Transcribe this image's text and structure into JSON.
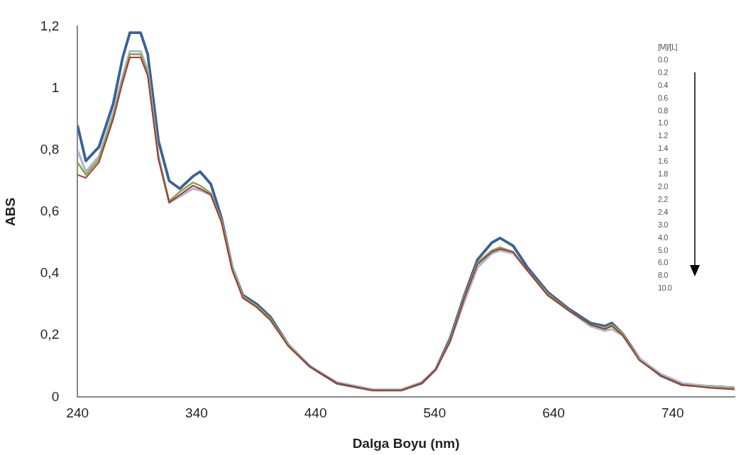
{
  "chart_data": {
    "type": "line",
    "xlabel": "Dalga Boyu (nm)",
    "ylabel": "ABS",
    "legend_title": "[M]/[L]",
    "annotations": [
      "0.0",
      "0.2",
      "0.4",
      "0.6",
      "0.8",
      "1.0",
      "1.2",
      "1.4",
      "1.6",
      "1.8",
      "2.0",
      "2.2",
      "2.4",
      "3.0",
      "4.0",
      "5.0",
      "6.0",
      "8.0",
      "10.0"
    ],
    "x": [
      240,
      247,
      258,
      270,
      278,
      284,
      293,
      299,
      308,
      317,
      326,
      337,
      343,
      352,
      361,
      370,
      379,
      391,
      402,
      417,
      435,
      458,
      488,
      512,
      529,
      541,
      553,
      565,
      576,
      588,
      595,
      606,
      618,
      635,
      653,
      671,
      683,
      689,
      698,
      712,
      730,
      748,
      771,
      792
    ],
    "xlim": [
      240,
      792
    ],
    "xticks": [
      240,
      340,
      440,
      540,
      640,
      740
    ],
    "ylim": [
      0,
      1.2
    ],
    "yticks": [
      0,
      {
        "value": 0.2,
        "label": "0,2"
      },
      {
        "value": 0.4,
        "label": "0,4"
      },
      {
        "value": 0.6,
        "label": "0,6"
      },
      {
        "value": 0.8,
        "label": "0,8"
      },
      1,
      {
        "value": 1.2,
        "label": "1,2"
      }
    ],
    "grid": false,
    "legend": false,
    "marker": "none",
    "line_style": "solid",
    "series": [
      {
        "color": "#a33a36",
        "values": [
          0.72,
          0.71,
          0.76,
          0.9,
          1.02,
          1.1,
          1.1,
          1.04,
          0.77,
          0.63,
          0.655,
          0.685,
          0.675,
          0.655,
          0.565,
          0.41,
          0.32,
          0.29,
          0.25,
          0.165,
          0.1,
          0.045,
          0.022,
          0.022,
          0.045,
          0.09,
          0.18,
          0.32,
          0.43,
          0.47,
          0.48,
          0.47,
          0.41,
          0.33,
          0.28,
          0.235,
          0.22,
          0.23,
          0.2,
          0.12,
          0.07,
          0.04,
          0.03,
          0.025
        ]
      },
      {
        "color": "#8aa84a",
        "values": [
          0.76,
          0.72,
          0.77,
          0.91,
          1.03,
          1.11,
          1.11,
          1.05,
          0.775,
          0.635,
          0.665,
          0.695,
          0.685,
          0.66,
          0.57,
          0.415,
          0.325,
          0.295,
          0.255,
          0.168,
          0.1,
          0.045,
          0.022,
          0.022,
          0.045,
          0.09,
          0.185,
          0.325,
          0.435,
          0.475,
          0.485,
          0.47,
          0.41,
          0.335,
          0.28,
          0.235,
          0.225,
          0.235,
          0.205,
          0.12,
          0.07,
          0.04,
          0.032,
          0.028
        ]
      },
      {
        "color": "#a8b8d6",
        "values": [
          0.8,
          0.73,
          0.78,
          0.92,
          1.04,
          1.12,
          1.12,
          1.06,
          0.78,
          0.63,
          0.65,
          0.675,
          0.67,
          0.655,
          0.57,
          0.42,
          0.325,
          0.29,
          0.25,
          0.17,
          0.1,
          0.048,
          0.025,
          0.025,
          0.048,
          0.09,
          0.18,
          0.31,
          0.42,
          0.465,
          0.475,
          0.465,
          0.41,
          0.33,
          0.28,
          0.23,
          0.215,
          0.22,
          0.2,
          0.125,
          0.075,
          0.045,
          0.035,
          0.03
        ]
      },
      {
        "color": "#3a6198",
        "values": [
          0.88,
          0.765,
          0.81,
          0.95,
          1.1,
          1.18,
          1.18,
          1.11,
          0.83,
          0.7,
          0.675,
          0.715,
          0.73,
          0.69,
          0.58,
          0.42,
          0.33,
          0.3,
          0.26,
          0.17,
          0.1,
          0.045,
          0.023,
          0.023,
          0.045,
          0.09,
          0.19,
          0.33,
          0.445,
          0.5,
          0.515,
          0.49,
          0.42,
          0.34,
          0.285,
          0.24,
          0.23,
          0.24,
          0.205,
          0.125,
          0.07,
          0.04,
          0.035,
          0.03
        ]
      }
    ]
  }
}
